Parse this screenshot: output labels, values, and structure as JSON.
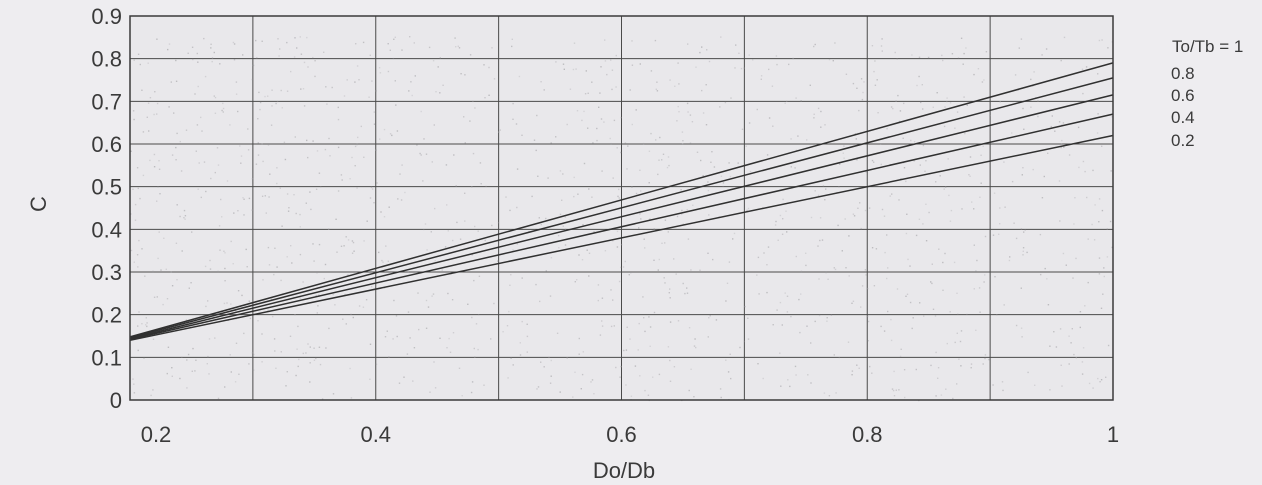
{
  "chart_data": {
    "type": "line",
    "title": "",
    "xlabel": "Do/Db",
    "ylabel": "C",
    "xlim": [
      0.2,
      1.0
    ],
    "ylim": [
      0,
      0.9
    ],
    "xticks": [
      0.2,
      0.4,
      0.6,
      0.8,
      1.0
    ],
    "xtick_labels": [
      "0.2",
      "0.4",
      "0.6",
      "0.8",
      "1"
    ],
    "yticks": [
      0,
      0.1,
      0.2,
      0.3,
      0.4,
      0.5,
      0.6,
      0.7,
      0.8,
      0.9
    ],
    "ytick_labels": [
      "0",
      "0.1",
      "0.2",
      "0.3",
      "0.4",
      "0.5",
      "0.6",
      "0.7",
      "0.8",
      "0.9"
    ],
    "grid": true,
    "legend_placement": "right",
    "series": [
      {
        "name": "To/Tb = 1",
        "x": [
          0.2,
          1.0
        ],
        "y": [
          0.148,
          0.79
        ]
      },
      {
        "name": "0.8",
        "x": [
          0.2,
          1.0
        ],
        "y": [
          0.146,
          0.755
        ]
      },
      {
        "name": "0.6",
        "x": [
          0.2,
          1.0
        ],
        "y": [
          0.144,
          0.715
        ]
      },
      {
        "name": "0.4",
        "x": [
          0.2,
          1.0
        ],
        "y": [
          0.142,
          0.67
        ]
      },
      {
        "name": "0.2",
        "x": [
          0.2,
          1.0
        ],
        "y": [
          0.14,
          0.62
        ]
      }
    ]
  },
  "colors": {
    "background": "#eeedf0",
    "plot_area": "#e9e8eb",
    "grid": "#4a4a4a",
    "lines": "#303030",
    "text": "#3a3a3a"
  }
}
